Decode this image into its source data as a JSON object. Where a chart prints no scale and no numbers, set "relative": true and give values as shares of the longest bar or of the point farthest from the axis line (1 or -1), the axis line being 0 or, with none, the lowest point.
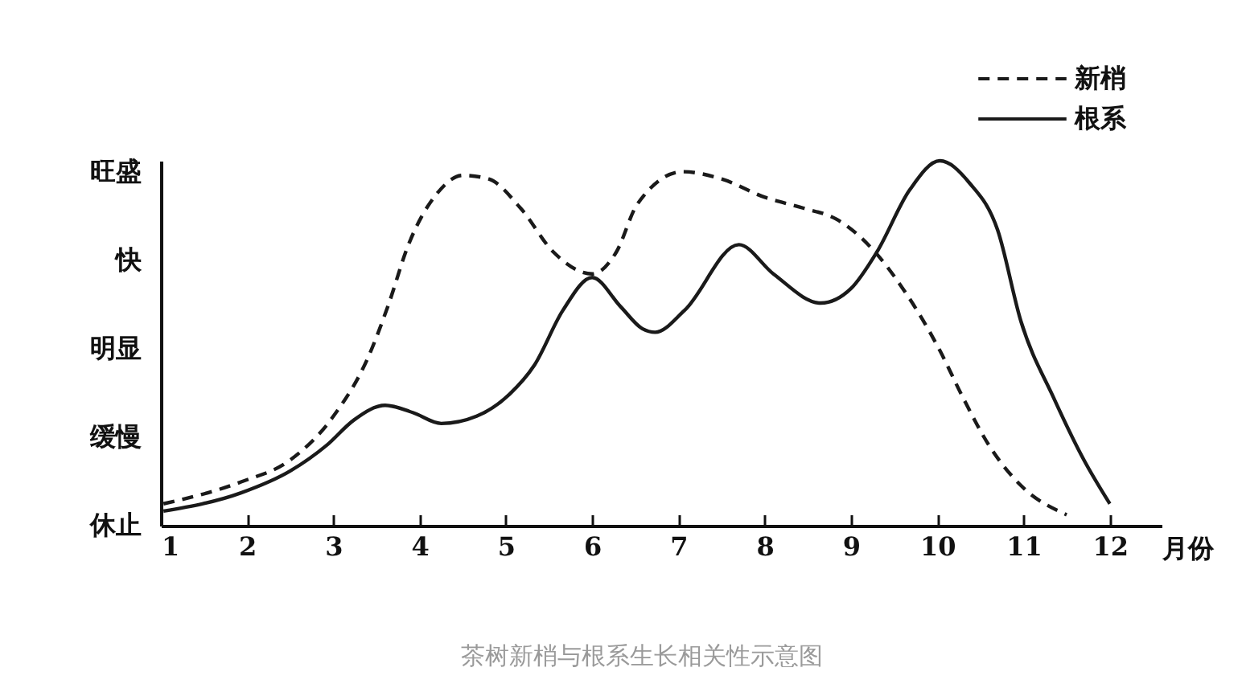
{
  "chart_data": {
    "type": "line",
    "title": "茶树新梢与根系生长相关性示意图",
    "xlabel": "月份",
    "xlim": [
      1,
      12.6
    ],
    "xticks": [
      1,
      2,
      3,
      4,
      5,
      6,
      7,
      8,
      9,
      10,
      11,
      12
    ],
    "relative": true,
    "annotations": [
      "休止",
      "缓慢",
      "明显",
      "快",
      "旺盛"
    ],
    "grid": false,
    "legend": "top right",
    "marker": "none",
    "series": [
      {
        "name": "新梢",
        "color": "#1a1a1a",
        "line_style": "dashed",
        "x": [
          1.03,
          1.93,
          2.5,
          3.0,
          3.4,
          3.63,
          3.87,
          4.2,
          4.5,
          4.8,
          5.17,
          5.55,
          6.0,
          6.28,
          6.52,
          7.05,
          7.5,
          8.0,
          8.45,
          8.83,
          9.2,
          9.6,
          10.03,
          10.3,
          10.6,
          10.97,
          11.5
        ],
        "values": [
          0.06,
          0.12,
          0.18,
          0.3,
          0.46,
          0.6,
          0.77,
          0.91,
          0.96,
          0.95,
          0.87,
          0.75,
          0.69,
          0.75,
          0.88,
          0.97,
          0.95,
          0.9,
          0.87,
          0.84,
          0.77,
          0.65,
          0.48,
          0.35,
          0.22,
          0.11,
          0.03
        ]
      },
      {
        "name": "根系",
        "color": "#1a1a1a",
        "line_style": "solid",
        "x": [
          1.03,
          1.93,
          2.5,
          2.92,
          3.24,
          3.6,
          3.92,
          4.25,
          4.66,
          5.04,
          5.33,
          5.66,
          6.0,
          6.33,
          6.58,
          6.73,
          7.07,
          7.7,
          8.1,
          8.65,
          9.0,
          9.3,
          9.68,
          10.03,
          10.37,
          10.7,
          10.97,
          11.35,
          11.7,
          12.0
        ],
        "values": [
          0.04,
          0.09,
          0.15,
          0.22,
          0.29,
          0.33,
          0.31,
          0.28,
          0.3,
          0.36,
          0.44,
          0.59,
          0.68,
          0.6,
          0.54,
          0.53,
          0.59,
          0.77,
          0.69,
          0.61,
          0.65,
          0.75,
          0.92,
          1,
          0.94,
          0.81,
          0.56,
          0.35,
          0.18,
          0.06
        ]
      }
    ]
  }
}
